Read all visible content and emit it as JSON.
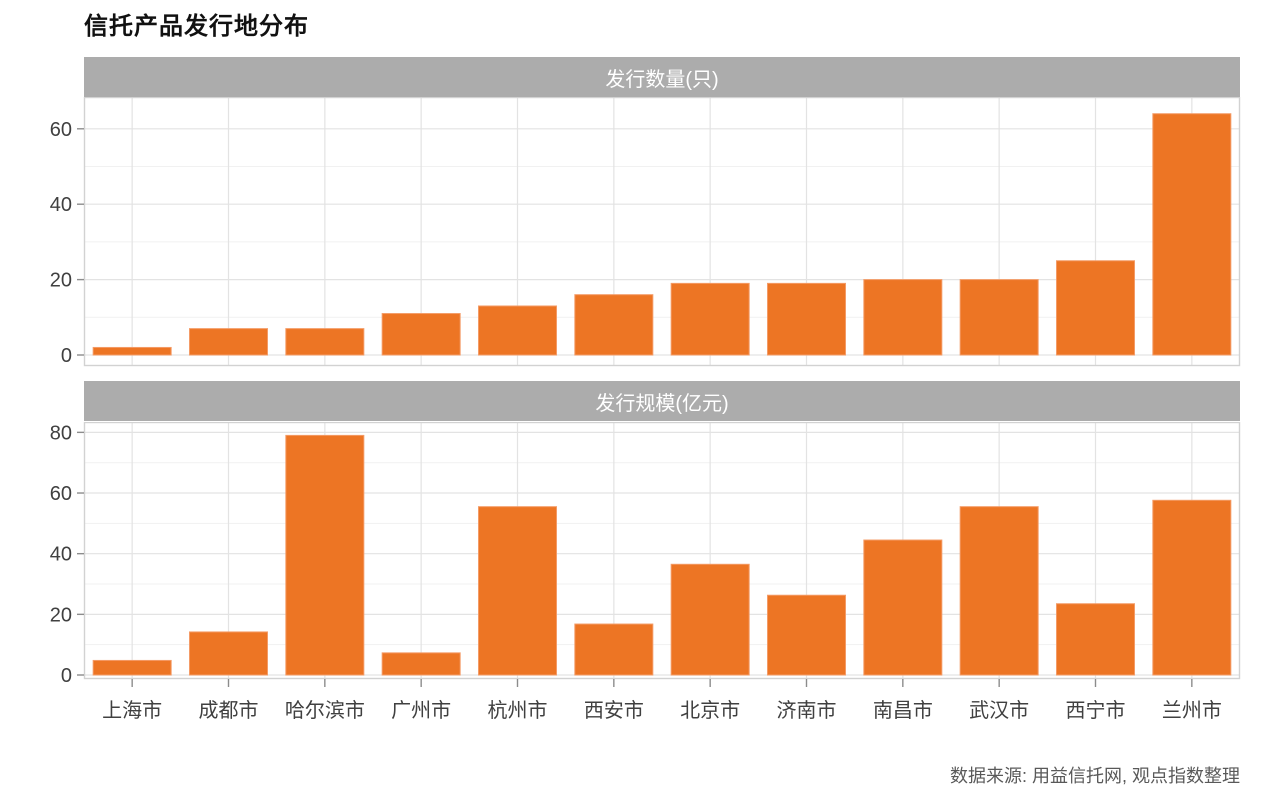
{
  "page": {
    "title": "信托产品发行地分布",
    "caption": "数据来源: 用益信托网, 观点指数整理"
  },
  "colors": {
    "bar_fill": "#ED7524",
    "bar_edge": "#F49B66",
    "strip_bg": "#ACACAC",
    "strip_text": "#FFFFFF",
    "grid_major": "#E3E3E3",
    "grid_minor": "#F1F1F1",
    "panel_border": "#D2D2D2",
    "axis_text": "#404040",
    "tick_mark": "#8C8C8C",
    "caption_text": "#595959"
  },
  "chart_data": [
    {
      "type": "bar",
      "panel_title": "发行数量(只)",
      "categories": [
        "上海市",
        "成都市",
        "哈尔滨市",
        "广州市",
        "杭州市",
        "西安市",
        "北京市",
        "济南市",
        "南昌市",
        "武汉市",
        "西宁市",
        "兰州市"
      ],
      "values": [
        2,
        7,
        7,
        11,
        13,
        16,
        19,
        19,
        20,
        20,
        25,
        64
      ],
      "xlabel": "",
      "ylabel": "",
      "ylim": [
        0,
        68
      ],
      "yticks": [
        0,
        20,
        40,
        60
      ],
      "minor_yticks": [
        10,
        30,
        50
      ],
      "grid": true,
      "legend": false
    },
    {
      "type": "bar",
      "panel_title": "发行规模(亿元)",
      "categories": [
        "上海市",
        "成都市",
        "哈尔滨市",
        "广州市",
        "杭州市",
        "西安市",
        "北京市",
        "济南市",
        "南昌市",
        "武汉市",
        "西宁市",
        "兰州市"
      ],
      "values": [
        4.8,
        14.2,
        79,
        7.3,
        55.5,
        16.8,
        36.5,
        26.3,
        44.5,
        55.5,
        23.5,
        57.6
      ],
      "xlabel": "",
      "ylabel": "",
      "ylim": [
        0,
        83
      ],
      "yticks": [
        0,
        20,
        40,
        60,
        80
      ],
      "minor_yticks": [
        10,
        30,
        50,
        70
      ],
      "grid": true,
      "legend": false
    }
  ]
}
